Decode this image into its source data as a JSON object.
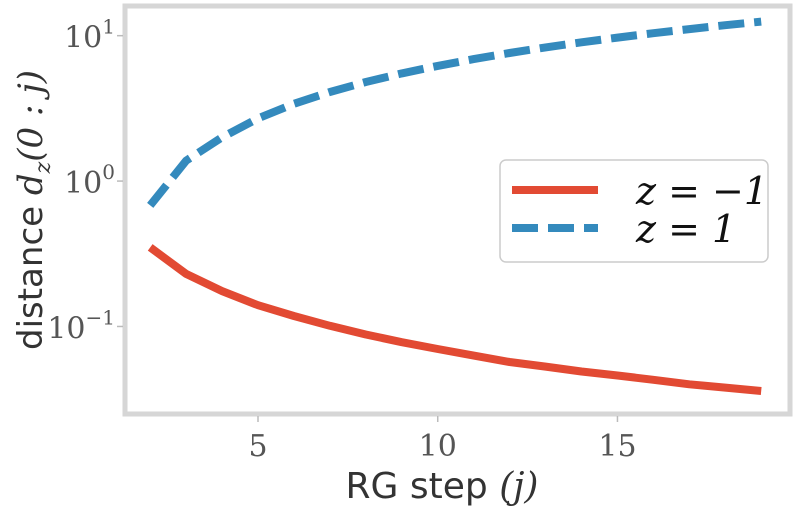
{
  "chart_data": {
    "type": "line",
    "xlabel": "RG step (j)",
    "ylabel": "distance d_z(0 : j)",
    "xscale": "linear",
    "yscale": "log",
    "xlim": [
      1.3,
      19.8
    ],
    "ylim": [
      0.025,
      16
    ],
    "xticks": [
      5,
      10,
      15
    ],
    "xtick_labels": [
      "5",
      "10",
      "15"
    ],
    "yticks": [
      0.1,
      1,
      10
    ],
    "ytick_labels": [
      {
        "base": "10",
        "exp": "−1"
      },
      {
        "base": "10",
        "exp": "0"
      },
      {
        "base": "10",
        "exp": "1"
      }
    ],
    "grid": false,
    "legend_position": "center-right",
    "x": [
      2,
      3,
      4,
      5,
      6,
      7,
      8,
      9,
      10,
      11,
      12,
      13,
      14,
      15,
      16,
      17,
      18,
      19
    ],
    "series": [
      {
        "name": "z = −1",
        "color": "#E24A33",
        "style": "solid",
        "values": [
          0.35,
          0.23,
          0.175,
          0.14,
          0.118,
          0.101,
          0.088,
          0.078,
          0.07,
          0.063,
          0.057,
          0.053,
          0.049,
          0.046,
          0.043,
          0.04,
          0.038,
          0.036
        ]
      },
      {
        "name": "z = 1",
        "color": "#348ABD",
        "style": "dashed",
        "values": [
          0.68,
          1.38,
          2.0,
          2.7,
          3.4,
          4.1,
          4.8,
          5.5,
          6.2,
          6.9,
          7.6,
          8.3,
          9.0,
          9.7,
          10.4,
          11.1,
          11.8,
          12.5
        ]
      }
    ]
  }
}
